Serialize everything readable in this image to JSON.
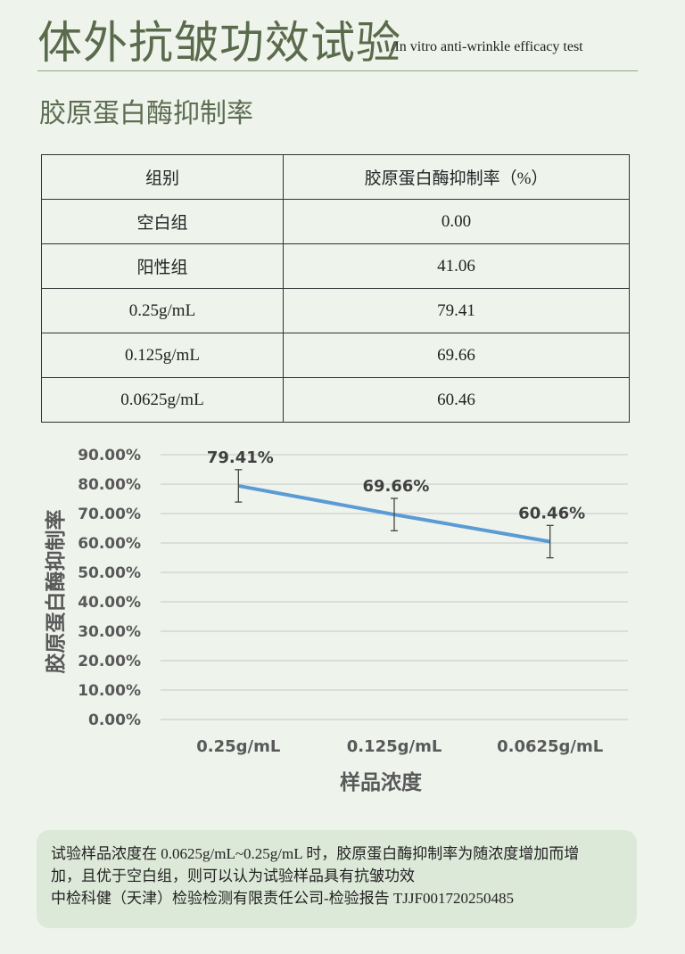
{
  "header": {
    "title": "体外抗皱功效试验",
    "subtitle": "/In vitro anti-wrinkle efficacy test"
  },
  "section": {
    "title": "胶原蛋白酶抑制率"
  },
  "table": {
    "headers": [
      "组别",
      "胶原蛋白酶抑制率（%）"
    ],
    "rows": [
      [
        "空白组",
        "0.00"
      ],
      [
        "阳性组",
        "41.06"
      ],
      [
        "0.25g/mL",
        "79.41"
      ],
      [
        "0.125g/mL",
        "69.66"
      ],
      [
        "0.0625g/mL",
        "60.46"
      ]
    ]
  },
  "chart_data": {
    "type": "line",
    "categories": [
      "0.25g/mL",
      "0.125g/mL",
      "0.0625g/mL"
    ],
    "series": [
      {
        "values": [
          79.41,
          69.66,
          60.46
        ],
        "error": [
          5.5,
          5.5,
          5.5
        ],
        "color": "#5b9bd5"
      }
    ],
    "data_labels": [
      "79.41%",
      "69.66%",
      "60.46%"
    ],
    "xlabel": "样品浓度",
    "ylabel": "胶原蛋白酶抑制率",
    "ylim": [
      0,
      90
    ],
    "yticks": [
      "0.00%",
      "10.00%",
      "20.00%",
      "30.00%",
      "40.00%",
      "50.00%",
      "60.00%",
      "70.00%",
      "80.00%",
      "90.00%"
    ],
    "grid": true,
    "legend": "none"
  },
  "note": {
    "line1": "试验样品浓度在 0.0625g/mL~0.25g/mL 时，胶原蛋白酶抑制率为随浓度增加而增",
    "line2": "加，且优于空白组，则可以认为试验样品具有抗皱功效",
    "line3": "中检科健（天津）检验检测有限责任公司-检验报告 TJJF001720250485"
  },
  "colors": {
    "background": "#eef3ec",
    "title": "#5a6b4c",
    "line": "#5b9bd5",
    "note_bg": "#dde9d8"
  }
}
